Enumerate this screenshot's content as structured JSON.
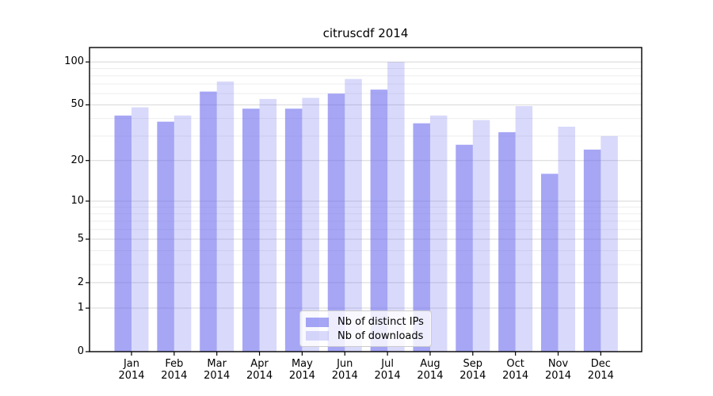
{
  "title": "citruscdf 2014",
  "chart_data": {
    "type": "bar",
    "title": "citruscdf 2014",
    "categories": [
      "Jan 2014",
      "Feb 2014",
      "Mar 2014",
      "Apr 2014",
      "May 2014",
      "Jun 2014",
      "Jul 2014",
      "Aug 2014",
      "Sep 2014",
      "Oct 2014",
      "Nov 2014",
      "Dec 2014"
    ],
    "x_tick_months": [
      "Jan",
      "Feb",
      "Mar",
      "Apr",
      "May",
      "Jun",
      "Jul",
      "Aug",
      "Sep",
      "Oct",
      "Nov",
      "Dec"
    ],
    "x_tick_year": "2014",
    "series": [
      {
        "name": "Nb of distinct IPs",
        "values": [
          42,
          38,
          62,
          47,
          47,
          60,
          64,
          37,
          26,
          32,
          16,
          24
        ],
        "color": "#6666ee",
        "fill_opacity": 0.58
      },
      {
        "name": "Nb of downloads",
        "values": [
          48,
          42,
          73,
          55,
          56,
          76,
          100,
          42,
          39,
          49,
          35,
          30
        ],
        "color": "#6666ee",
        "fill_opacity": 0.25
      }
    ],
    "yscale": "log1p",
    "ylim": [
      0,
      127
    ],
    "y_major_ticks": [
      0,
      1,
      2,
      5,
      10,
      20,
      50,
      100
    ],
    "y_tick_labels": [
      "0",
      "1",
      "2",
      "5",
      "10",
      "20",
      "50",
      "100"
    ],
    "y_minor_gridlines": [
      3,
      4,
      6,
      7,
      8,
      9,
      30,
      40,
      60,
      70,
      80,
      90
    ],
    "grid": true,
    "legend": {
      "position": "lower center",
      "entries": [
        "Nb of distinct IPs",
        "Nb of downloads"
      ]
    },
    "colors": {
      "bar_base": "#6666ee",
      "grid_major": "#d7d7d7",
      "grid_minor": "#eeeeee",
      "axis": "#000000",
      "legend_border": "#cccccc",
      "background": "#ffffff"
    }
  }
}
